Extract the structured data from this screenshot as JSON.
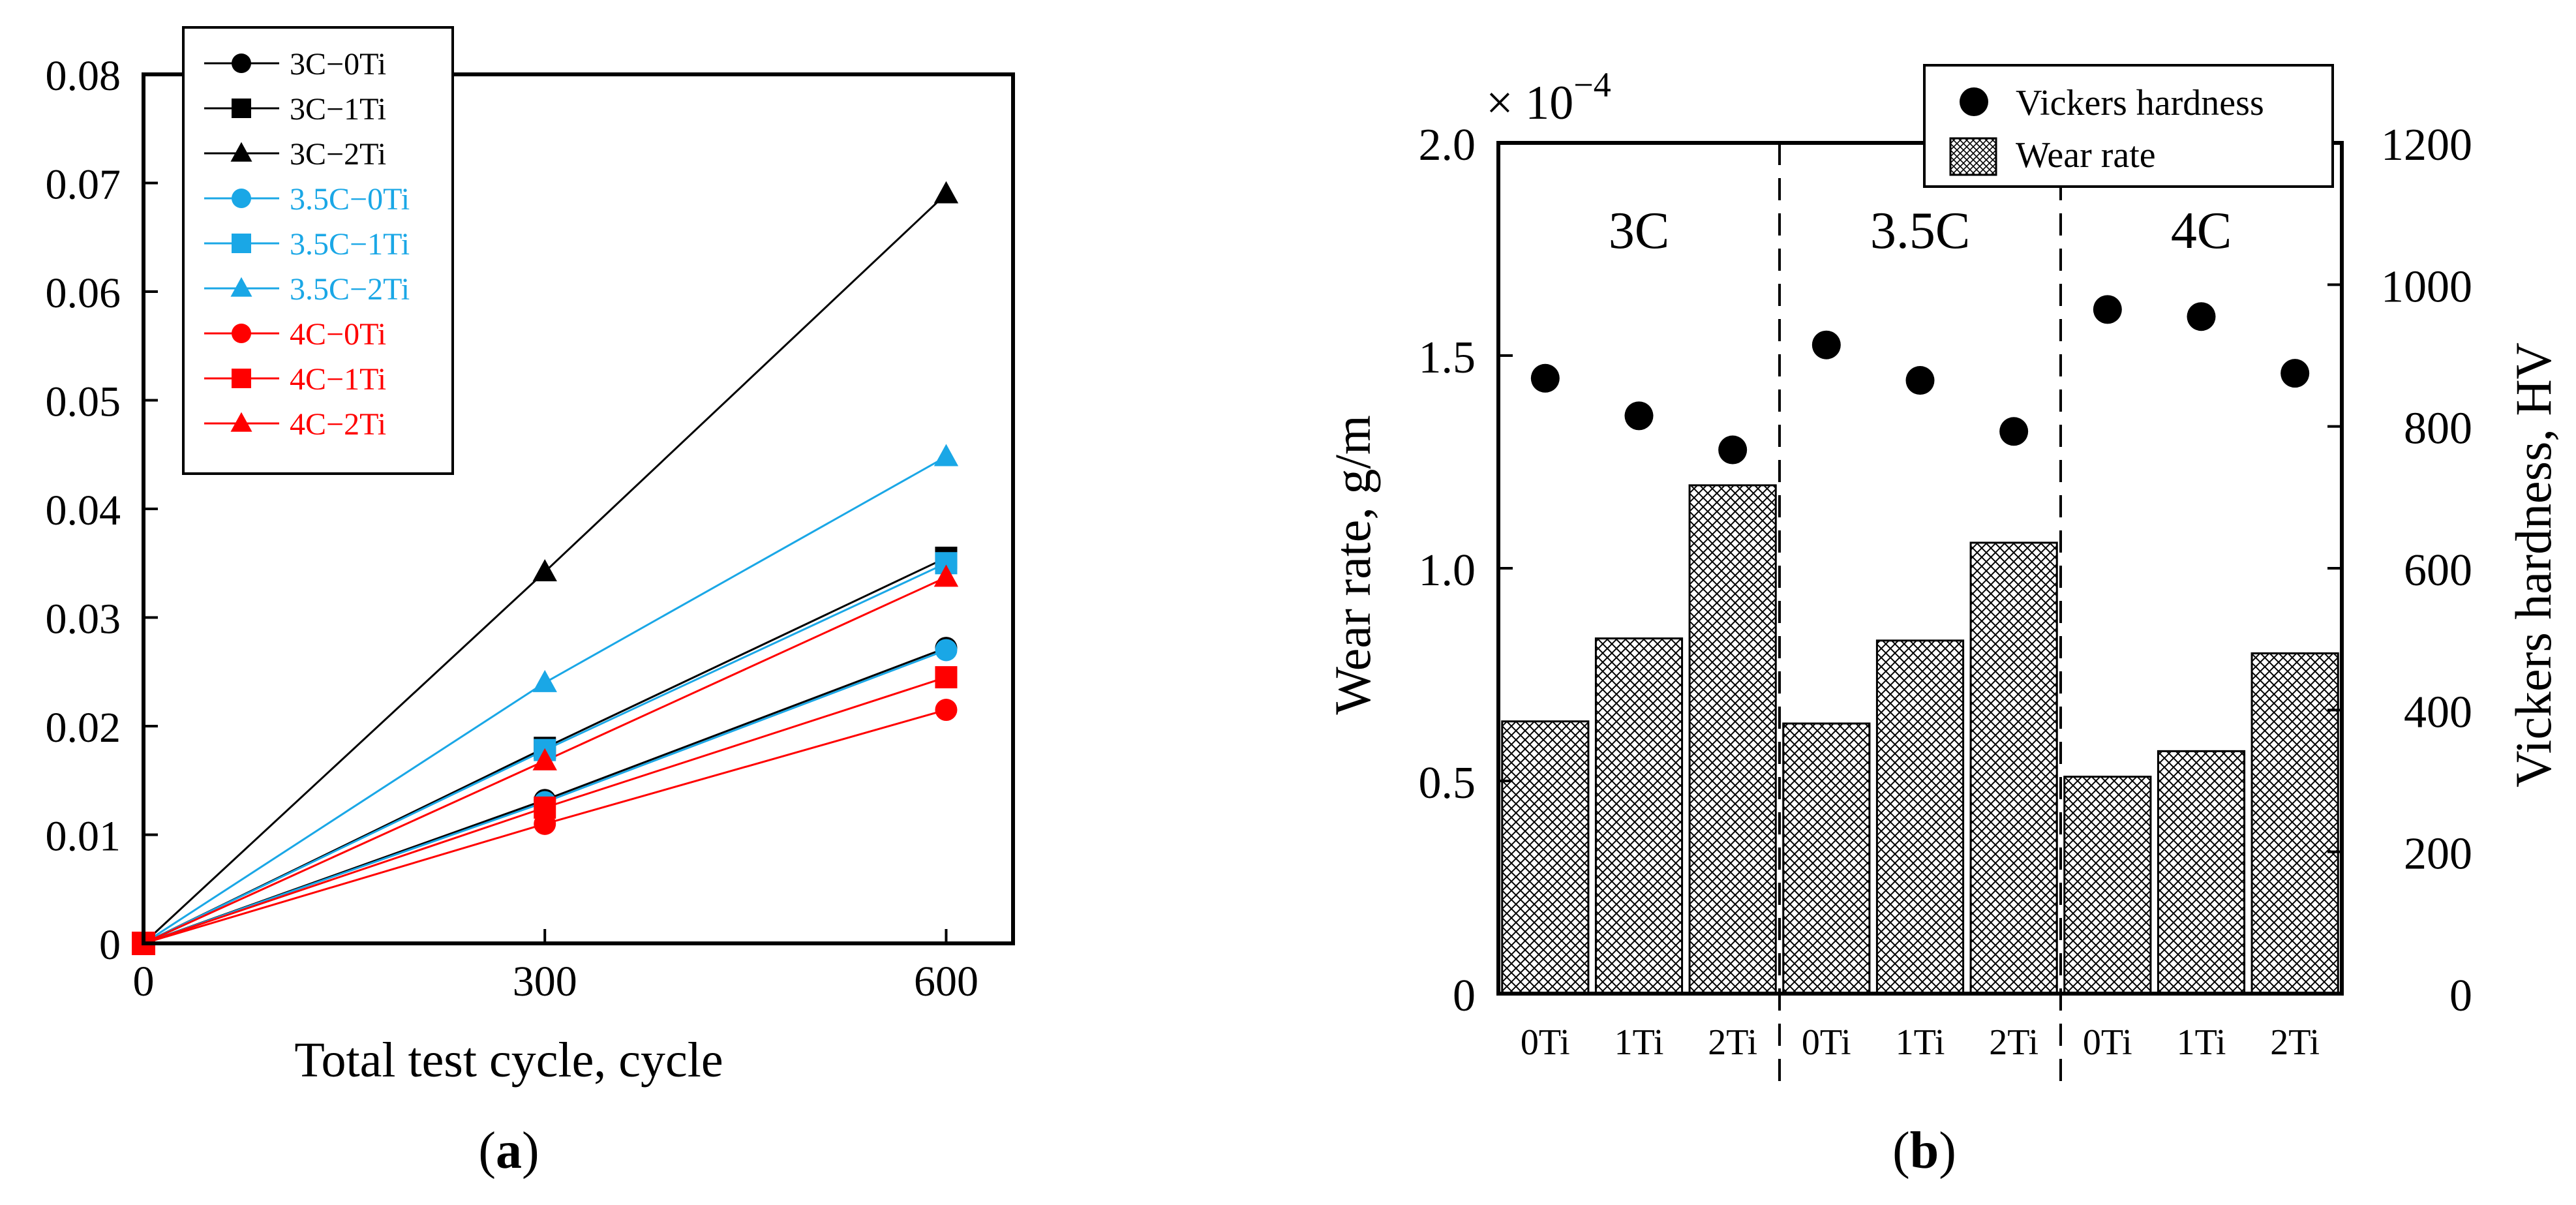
{
  "chart_data": [
    {
      "panel_label": "(a)",
      "panel_letter": "a",
      "type": "line",
      "title": "",
      "xlabel": "Total test cycle, cycle",
      "ylabel": "",
      "x": [
        0,
        300,
        600
      ],
      "xlim": [
        0,
        650
      ],
      "ylim": [
        0,
        0.08
      ],
      "xticks": [
        0,
        300,
        600
      ],
      "xtick_labels": [
        "0",
        "300",
        "600"
      ],
      "yticks": [
        0,
        0.01,
        0.02,
        0.03,
        0.04,
        0.05,
        0.06,
        0.07,
        0.08
      ],
      "ytick_labels": [
        "0",
        "0.01",
        "0.02",
        "0.03",
        "0.04",
        "0.05",
        "0.06",
        "0.07",
        "0.08"
      ],
      "legend_position": "top-left",
      "series": [
        {
          "name": "3C−0Ti",
          "color": "#000000",
          "marker": "circle",
          "values": [
            0,
            0.0132,
            0.0272
          ]
        },
        {
          "name": "3C−1Ti",
          "color": "#000000",
          "marker": "square",
          "values": [
            0,
            0.018,
            0.0355
          ]
        },
        {
          "name": "3C−2Ti",
          "color": "#000000",
          "marker": "triangle",
          "values": [
            0,
            0.0342,
            0.069
          ]
        },
        {
          "name": "3.5C−0Ti",
          "color": "#1aa7e6",
          "marker": "circle",
          "values": [
            0,
            0.013,
            0.027
          ]
        },
        {
          "name": "3.5C−1Ti",
          "color": "#1aa7e6",
          "marker": "square",
          "values": [
            0,
            0.0178,
            0.035
          ]
        },
        {
          "name": "3.5C−2Ti",
          "color": "#1aa7e6",
          "marker": "triangle",
          "values": [
            0,
            0.024,
            0.0448
          ]
        },
        {
          "name": "4C−0Ti",
          "color": "#ff0000",
          "marker": "circle",
          "values": [
            0,
            0.011,
            0.0215
          ]
        },
        {
          "name": "4C−1Ti",
          "color": "#ff0000",
          "marker": "square",
          "values": [
            0,
            0.0125,
            0.0245
          ]
        },
        {
          "name": "4C−2Ti",
          "color": "#ff0000",
          "marker": "triangle",
          "values": [
            0,
            0.0168,
            0.0337
          ]
        }
      ]
    },
    {
      "panel_label": "(b)",
      "panel_letter": "b",
      "type": "bar",
      "title": "",
      "categories": [
        "0Ti",
        "1Ti",
        "2Ti",
        "0Ti",
        "1Ti",
        "2Ti",
        "0Ti",
        "1Ti",
        "2Ti"
      ],
      "groups": [
        "3C",
        "3.5C",
        "4C"
      ],
      "ylabel": "Wear rate, g/m",
      "y_multiplier": "× 10",
      "y_exponent": "−4",
      "ylim": [
        0,
        2.0
      ],
      "yticks": [
        0,
        0.5,
        1.0,
        1.5,
        2.0
      ],
      "ytick_labels": [
        "0",
        "0.5",
        "1.0",
        "1.5",
        "2.0"
      ],
      "y2label": "Vickers hardness, HV",
      "y2lim": [
        0,
        1200
      ],
      "y2ticks": [
        0,
        200,
        400,
        600,
        800,
        1000,
        1200
      ],
      "y2tick_labels": [
        "0",
        "200",
        "400",
        "600",
        "800",
        "1000",
        "1200"
      ],
      "legend_position": "top-right",
      "series": [
        {
          "name": "Wear rate",
          "kind": "bar",
          "axis": "left",
          "pattern": "crosshatch",
          "values": [
            0.64,
            0.835,
            1.195,
            0.635,
            0.83,
            1.06,
            0.51,
            0.57,
            0.8
          ]
        },
        {
          "name": "Vickers hardness",
          "kind": "scatter",
          "axis": "right",
          "marker": "circle",
          "color": "#000000",
          "values": [
            868,
            815,
            767,
            915,
            865,
            793,
            965,
            955,
            875
          ]
        }
      ]
    }
  ]
}
